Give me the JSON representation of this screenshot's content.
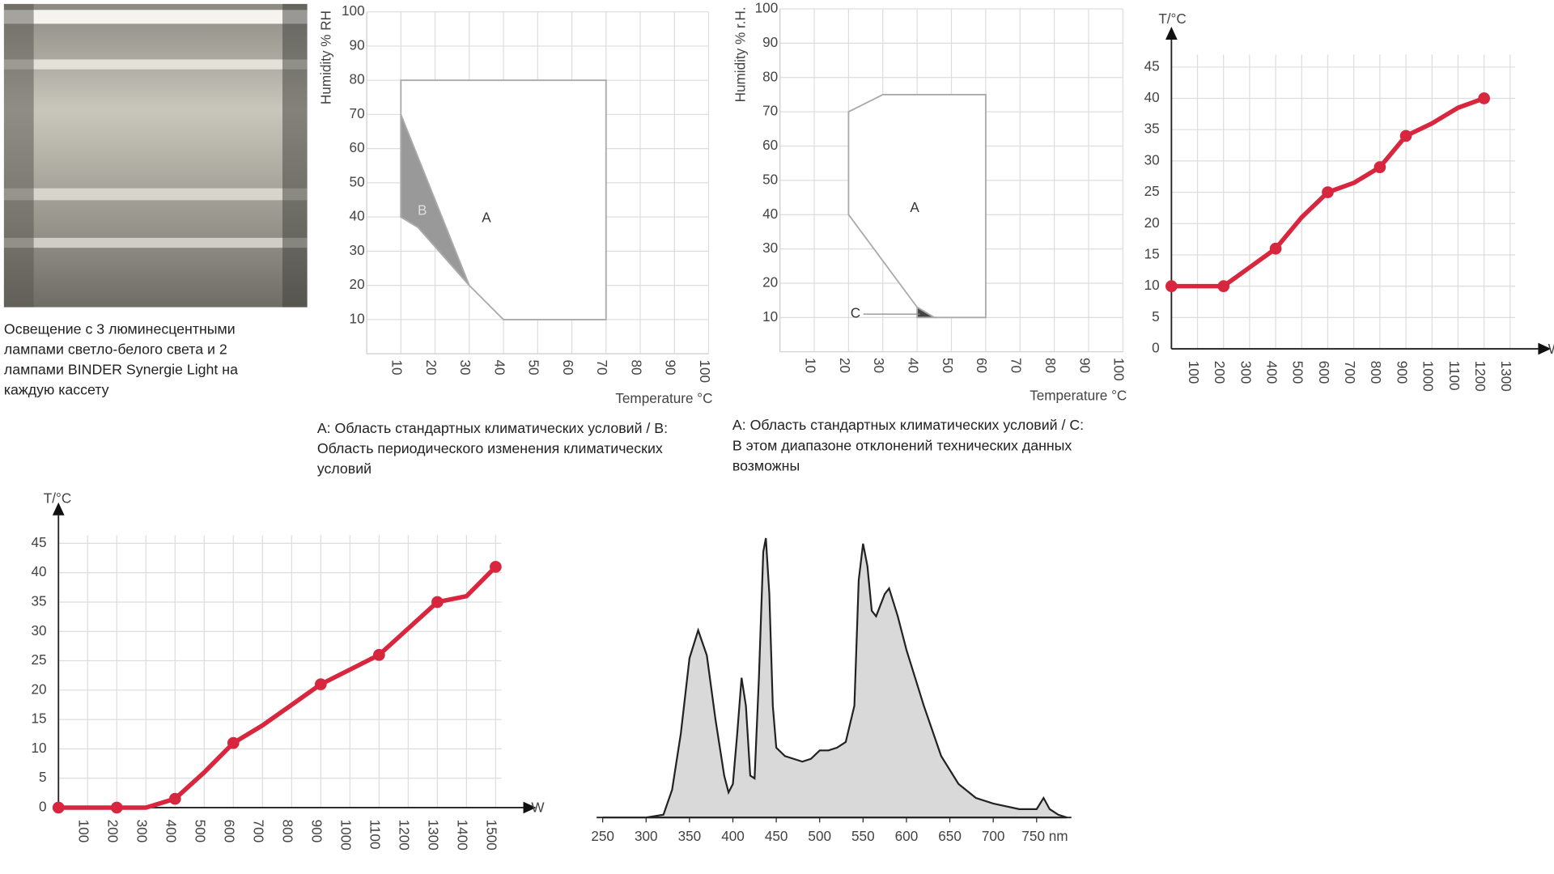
{
  "captions": [
    [
      "Освещение с 3 люминесцентными",
      "лампами светло-белого света и 2",
      "лампами BINDER Synergie Light на",
      "каждую кассету"
    ],
    [
      "A: Область стандартных климатических условий / B:",
      "Область периодического изменения климатических",
      "условий"
    ],
    [
      "A: Область стандартных климатических условий / C:",
      "В этом диапазоне отклонений технических данных",
      "возможны"
    ]
  ],
  "chart_data": [
    {
      "type": "region",
      "y_label": "Humidity % RH",
      "x_label": "Temperature °C",
      "xlim": [
        0,
        100
      ],
      "ylim": [
        0,
        100
      ],
      "xticks": [
        10,
        20,
        30,
        40,
        50,
        60,
        70,
        80,
        90,
        100
      ],
      "yticks": [
        10,
        20,
        30,
        40,
        50,
        60,
        70,
        80,
        90,
        100
      ],
      "grid": true,
      "regions": [
        {
          "name": "A",
          "color": "#ffffff",
          "x": [
            10,
            70,
            70,
            40,
            30,
            15,
            10
          ],
          "y": [
            80,
            80,
            10,
            10,
            20,
            37,
            40
          ]
        },
        {
          "name": "B",
          "color": "#999999",
          "x": [
            10,
            10,
            15,
            30
          ],
          "y": [
            70,
            40,
            37,
            20
          ]
        }
      ]
    },
    {
      "type": "region",
      "y_label": "Humidity % r.H.",
      "x_label": "Temperature °C",
      "xlim": [
        0,
        100
      ],
      "ylim": [
        0,
        100
      ],
      "xticks": [
        10,
        20,
        30,
        40,
        50,
        60,
        70,
        80,
        90,
        100
      ],
      "yticks": [
        10,
        20,
        30,
        40,
        50,
        60,
        70,
        80,
        90,
        100
      ],
      "grid": true,
      "regions": [
        {
          "name": "A",
          "color": "#ffffff",
          "x": [
            20,
            30,
            60,
            60,
            45,
            40,
            20
          ],
          "y": [
            70,
            75,
            75,
            10,
            10,
            13,
            40
          ]
        },
        {
          "name": "C",
          "color": "#444444",
          "x": [
            40,
            45,
            40
          ],
          "y": [
            13,
            10,
            10
          ]
        }
      ]
    },
    {
      "type": "line",
      "y_label": "T/°C",
      "x_label": "W",
      "xlim": [
        0,
        1320
      ],
      "ylim": [
        0,
        47
      ],
      "xticks": [
        100,
        200,
        300,
        400,
        500,
        600,
        700,
        800,
        900,
        1000,
        1100,
        1200,
        1300
      ],
      "yticks": [
        0,
        5,
        10,
        15,
        20,
        25,
        30,
        35,
        40,
        45
      ],
      "grid": true,
      "series": [
        {
          "color": "#d7263d",
          "mode": "line",
          "x": [
            0,
            100,
            200,
            300,
            400,
            500,
            600,
            700,
            800,
            900,
            1000,
            1100,
            1200
          ],
          "values": [
            10,
            10,
            10,
            13,
            16,
            21,
            25,
            26.5,
            29,
            34,
            36,
            38.5,
            40
          ]
        },
        {
          "color": "#d7263d",
          "mode": "markers",
          "x": [
            0,
            200,
            400,
            600,
            800,
            900,
            1200
          ],
          "values": [
            10,
            10,
            16,
            25,
            29,
            34,
            40
          ]
        }
      ]
    },
    {
      "type": "line",
      "y_label": "T/°C",
      "x_label": "W",
      "xlim": [
        0,
        1520
      ],
      "ylim": [
        0,
        46.4
      ],
      "xticks": [
        100,
        200,
        300,
        400,
        500,
        600,
        700,
        800,
        900,
        1000,
        1100,
        1200,
        1300,
        1400,
        1500
      ],
      "yticks": [
        0,
        5,
        10,
        15,
        20,
        25,
        30,
        35,
        40,
        45
      ],
      "grid": true,
      "series": [
        {
          "color": "#d7263d",
          "mode": "line",
          "x": [
            0,
            100,
            200,
            300,
            400,
            500,
            600,
            700,
            800,
            900,
            1000,
            1100,
            1200,
            1300,
            1400,
            1500
          ],
          "values": [
            0,
            0,
            0,
            0,
            1.5,
            6,
            11,
            14,
            17.5,
            21,
            23.5,
            26,
            30.5,
            35,
            36,
            41
          ]
        },
        {
          "color": "#d7263d",
          "mode": "markers",
          "x": [
            0,
            200,
            400,
            600,
            900,
            1100,
            1300,
            1500
          ],
          "values": [
            0,
            0,
            1.5,
            11,
            21,
            26,
            35,
            41
          ]
        }
      ]
    },
    {
      "type": "area",
      "xlim": [
        243,
        790
      ],
      "ylim": [
        0,
        100
      ],
      "grid": false,
      "xticks": [
        250,
        300,
        350,
        400,
        450,
        500,
        550,
        600,
        650,
        700,
        {
          "value": 750,
          "label": "750 nm"
        }
      ],
      "series": [
        {
          "color": "#d9d9d9",
          "x": [
            250,
            300,
            320,
            330,
            340,
            350,
            360,
            370,
            380,
            390,
            395,
            400,
            405,
            410,
            415,
            420,
            425,
            430,
            435,
            438,
            442,
            446,
            450,
            460,
            480,
            490,
            500,
            510,
            520,
            530,
            540,
            545,
            550,
            555,
            560,
            565,
            575,
            580,
            590,
            600,
            620,
            640,
            660,
            680,
            700,
            730,
            750,
            758,
            765,
            775,
            785
          ],
          "values": [
            0,
            0,
            1,
            10,
            30,
            57,
            67,
            58,
            35,
            15,
            9,
            12,
            30,
            50,
            40,
            15,
            14,
            50,
            95,
            100,
            80,
            40,
            25,
            22,
            20,
            21,
            24,
            24,
            25,
            27,
            40,
            85,
            98,
            90,
            74,
            72,
            80,
            82,
            72,
            60,
            40,
            22,
            12,
            7,
            5,
            3,
            3,
            7,
            3,
            1,
            0
          ]
        }
      ]
    }
  ]
}
